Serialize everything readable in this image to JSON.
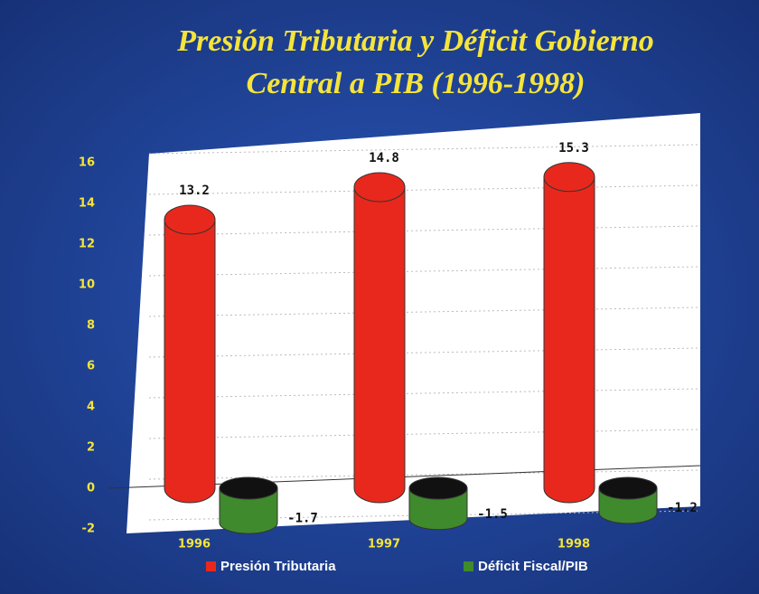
{
  "chart_data": {
    "type": "cylinder-bar",
    "title": "Presión Tributaria y Déficit Gobierno Central a PIB (1996-1998)",
    "categories": [
      "1996",
      "1997",
      "1998"
    ],
    "series": [
      {
        "name": "Presión Tributaria",
        "color": "#e8281c",
        "values": [
          13.2,
          14.8,
          15.3
        ]
      },
      {
        "name": "Déficit Fiscal/PIB",
        "color": "#3f8a2c",
        "values": [
          -1.7,
          -1.5,
          -1.2
        ]
      }
    ],
    "ylim": [
      -2,
      16
    ],
    "yticks": [
      -2,
      0,
      2,
      4,
      6,
      8,
      10,
      12,
      14,
      16
    ],
    "grid": true
  }
}
